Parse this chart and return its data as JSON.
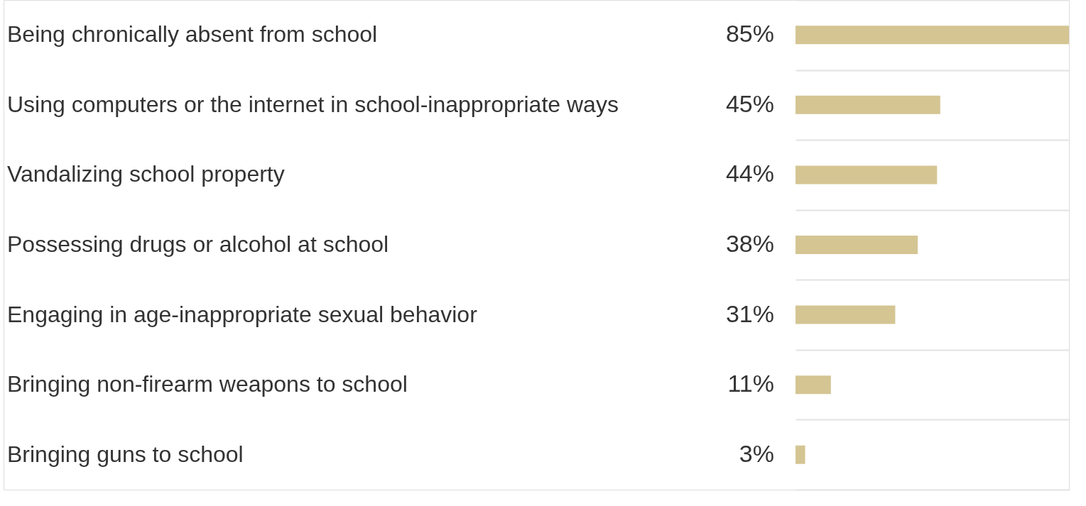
{
  "chart_data": {
    "type": "bar",
    "orientation": "horizontal",
    "grid": "y",
    "categories": [
      "Being chronically absent from school",
      "Using computers or the internet in school-inappropriate ways",
      "Vandalizing school property",
      "Possessing drugs or alcohol at school",
      "Engaging in age-inappropriate sexual behavior",
      "Bringing non-firearm weapons to school",
      "Bringing guns to school"
    ],
    "values": [
      85,
      45,
      44,
      38,
      31,
      11,
      3
    ],
    "value_labels": [
      "85%",
      "45%",
      "44%",
      "38%",
      "31%",
      "11%",
      "3%"
    ],
    "color": "#d4c593"
  }
}
